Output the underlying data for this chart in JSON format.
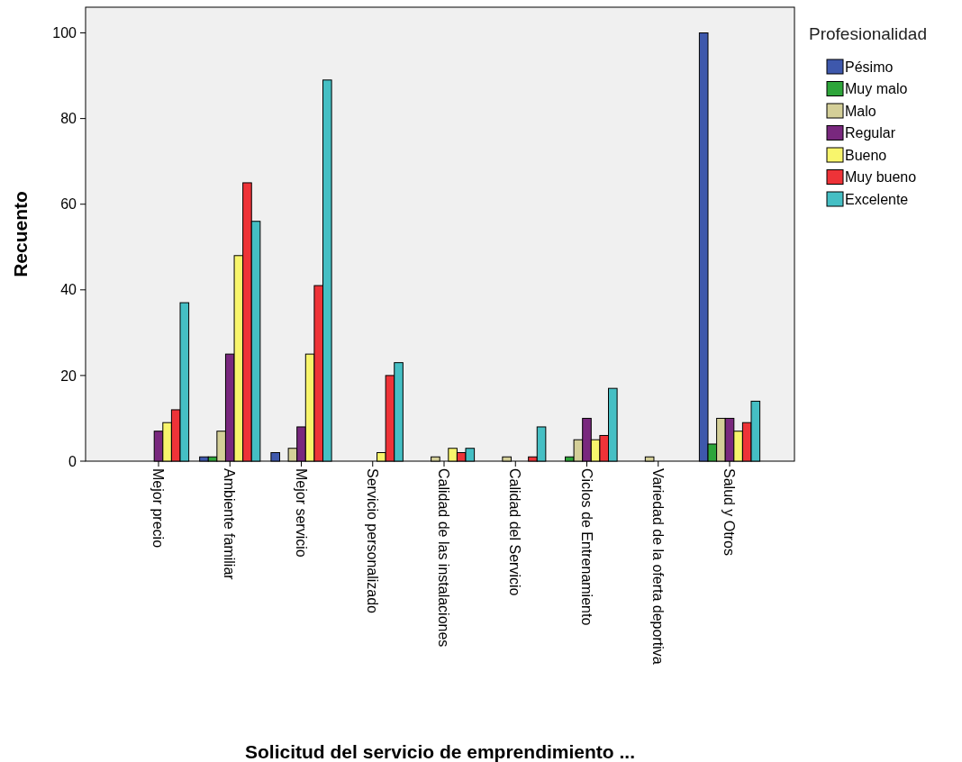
{
  "chart_data": {
    "type": "bar",
    "xlabel": "Solicitud del servicio de emprendimiento ...",
    "ylabel": "Recuento",
    "legend_title": "Profesionalidad",
    "legend": "top right",
    "grid": false,
    "categories": [
      "Mejor precio",
      "Ambiente familiar",
      "Mejor servicio",
      "Servicio personalizado",
      "Calidad de las instalaciones",
      "Calidad del Servicio",
      "Ciclos de Entrenamiento",
      "Variedad de la oferta deportiva",
      "Salud y Otros"
    ],
    "ylim": [
      0,
      106
    ],
    "yticks": [
      0,
      20,
      40,
      60,
      80,
      100
    ],
    "series": [
      {
        "name": "Pésimo",
        "color": "#3e58ac",
        "values": [
          null,
          1,
          2,
          null,
          null,
          null,
          null,
          null,
          100
        ]
      },
      {
        "name": "Muy malo",
        "color": "#2ea53a",
        "values": [
          null,
          1,
          null,
          null,
          null,
          null,
          1,
          null,
          4
        ]
      },
      {
        "name": "Malo",
        "color": "#d4cf98",
        "values": [
          null,
          7,
          3,
          null,
          1,
          1,
          5,
          1,
          10
        ]
      },
      {
        "name": "Regular",
        "color": "#79287e",
        "values": [
          7,
          25,
          8,
          null,
          null,
          null,
          10,
          null,
          10
        ]
      },
      {
        "name": "Bueno",
        "color": "#f8f56c",
        "values": [
          9,
          48,
          25,
          2,
          3,
          null,
          5,
          null,
          7
        ]
      },
      {
        "name": "Muy bueno",
        "color": "#ee3338",
        "values": [
          12,
          65,
          41,
          20,
          2,
          1,
          6,
          null,
          9
        ]
      },
      {
        "name": "Excelente",
        "color": "#45bfc4",
        "values": [
          37,
          56,
          89,
          23,
          3,
          8,
          17,
          null,
          14
        ]
      }
    ]
  }
}
